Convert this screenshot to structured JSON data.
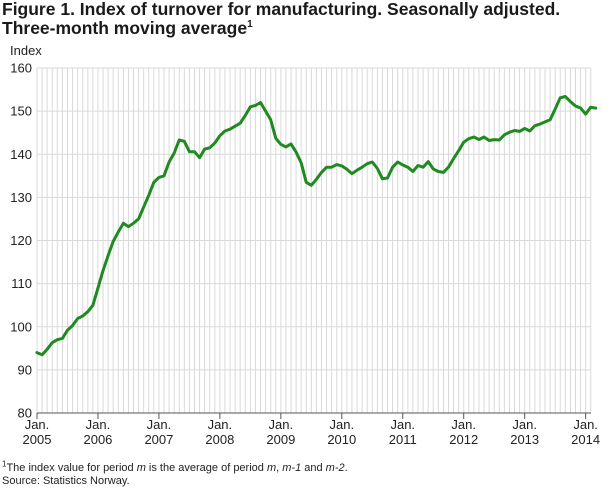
{
  "chart_data": {
    "type": "line",
    "title_line1": "Figure 1. Index of turnover for manufacturing. Seasonally adjusted.",
    "title_line2": "Three-month moving average",
    "title_sup": "1",
    "ylabel": "Index",
    "ylim": [
      80,
      160
    ],
    "yticks": [
      80,
      90,
      100,
      110,
      120,
      130,
      140,
      150,
      160
    ],
    "grid": true,
    "line_color": "#1f8a1f",
    "x_start": "2005-01",
    "x_ticks": [
      {
        "line1": "Jan.",
        "line2": "2005"
      },
      {
        "line1": "Jan.",
        "line2": "2006"
      },
      {
        "line1": "Jan.",
        "line2": "2007"
      },
      {
        "line1": "Jan.",
        "line2": "2008"
      },
      {
        "line1": "Jan.",
        "line2": "2009"
      },
      {
        "line1": "Jan.",
        "line2": "2010"
      },
      {
        "line1": "Jan.",
        "line2": "2011"
      },
      {
        "line1": "Jan.",
        "line2": "2012"
      },
      {
        "line1": "Jan.",
        "line2": "2013"
      },
      {
        "line1": "Jan.",
        "line2": "2014"
      }
    ],
    "values": [
      94.0,
      93.5,
      94.8,
      96.3,
      97.0,
      97.3,
      99.2,
      100.3,
      101.9,
      102.5,
      103.5,
      105.0,
      109.0,
      113.0,
      116.5,
      119.8,
      122.0,
      124.0,
      123.2,
      124.0,
      125.0,
      127.8,
      130.5,
      133.5,
      134.6,
      135.0,
      138.2,
      140.3,
      143.3,
      143.0,
      140.6,
      140.6,
      139.2,
      141.2,
      141.5,
      142.6,
      144.3,
      145.4,
      145.8,
      146.5,
      147.2,
      149.0,
      151.0,
      151.3,
      152.0,
      150.0,
      148.0,
      143.7,
      142.3,
      141.7,
      142.4,
      140.5,
      138.0,
      133.5,
      132.8,
      134.2,
      135.8,
      137.0,
      137.0,
      137.6,
      137.3,
      136.5,
      135.5,
      136.3,
      137.0,
      137.8,
      138.2,
      136.7,
      134.3,
      134.5,
      137.0,
      138.2,
      137.5,
      137.0,
      136.0,
      137.4,
      137.0,
      138.3,
      136.6,
      136.0,
      135.8,
      137.0,
      139.0,
      140.8,
      142.8,
      143.6,
      144.0,
      143.4,
      144.0,
      143.2,
      143.4,
      143.3,
      144.5,
      145.1,
      145.5,
      145.3,
      146.0,
      145.4,
      146.6,
      147.0,
      147.5,
      148.0,
      150.5,
      153.1,
      153.4,
      152.2,
      151.2,
      150.7,
      149.3,
      150.9,
      150.7
    ]
  },
  "footnote": {
    "sup": "1",
    "text_a": "The index value for period ",
    "m1": "m",
    "text_b": " is the average of period ",
    "m2": "m",
    "text_c": ", ",
    "m3": "m-1",
    "text_d": " and ",
    "m4": "m-2",
    "text_e": "."
  },
  "source": "Source: Statistics Norway."
}
